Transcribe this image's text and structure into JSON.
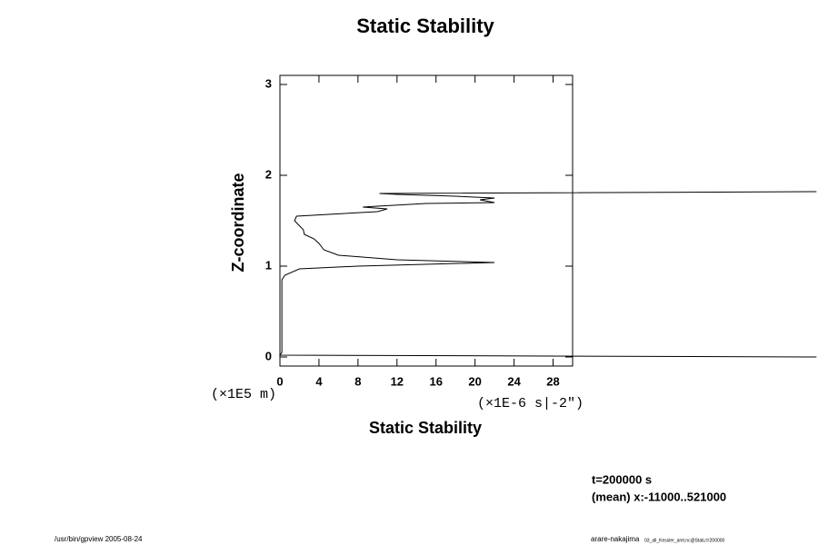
{
  "chart_data": {
    "type": "line",
    "title": "Static Stability",
    "xlabel": "Static Stability",
    "ylabel": "Z-coordinate",
    "xunit": "(×1E-6 s|-2\")",
    "yunit": "(×1E5 m)",
    "annotations": [
      "t=200000 s",
      "(mean) x:-11000..521000"
    ],
    "footer_left": "/usr/bin/gpview 2005-08-24",
    "footer_right": "arare-nakajima",
    "footer_right_small": "03_all_Kessler_amt.nc@Stab,t=200000",
    "xlim": [
      0,
      30
    ],
    "ylim": [
      -0.1,
      3.1
    ],
    "xticks": [
      0,
      4,
      8,
      12,
      16,
      20,
      24,
      28
    ],
    "yticks": [
      0,
      1,
      2,
      3
    ],
    "series": [
      {
        "name": "Static Stability",
        "color": "#000000",
        "x": [
          55,
          10.2,
          12,
          18,
          22,
          20.5,
          22,
          15,
          10,
          8.5,
          11,
          10,
          5,
          1.7,
          1.5,
          2.4,
          2.5,
          3.5,
          4,
          4.5,
          6,
          12,
          22,
          8,
          2,
          0.5,
          0.2,
          0.2,
          0,
          55
        ],
        "y": [
          1.82,
          1.8,
          1.79,
          1.77,
          1.75,
          1.73,
          1.7,
          1.69,
          1.66,
          1.65,
          1.63,
          1.6,
          1.57,
          1.55,
          1.5,
          1.4,
          1.35,
          1.3,
          1.25,
          1.18,
          1.12,
          1.07,
          1.04,
          1.0,
          0.97,
          0.9,
          0.85,
          0.05,
          0.02,
          0
        ]
      }
    ]
  }
}
